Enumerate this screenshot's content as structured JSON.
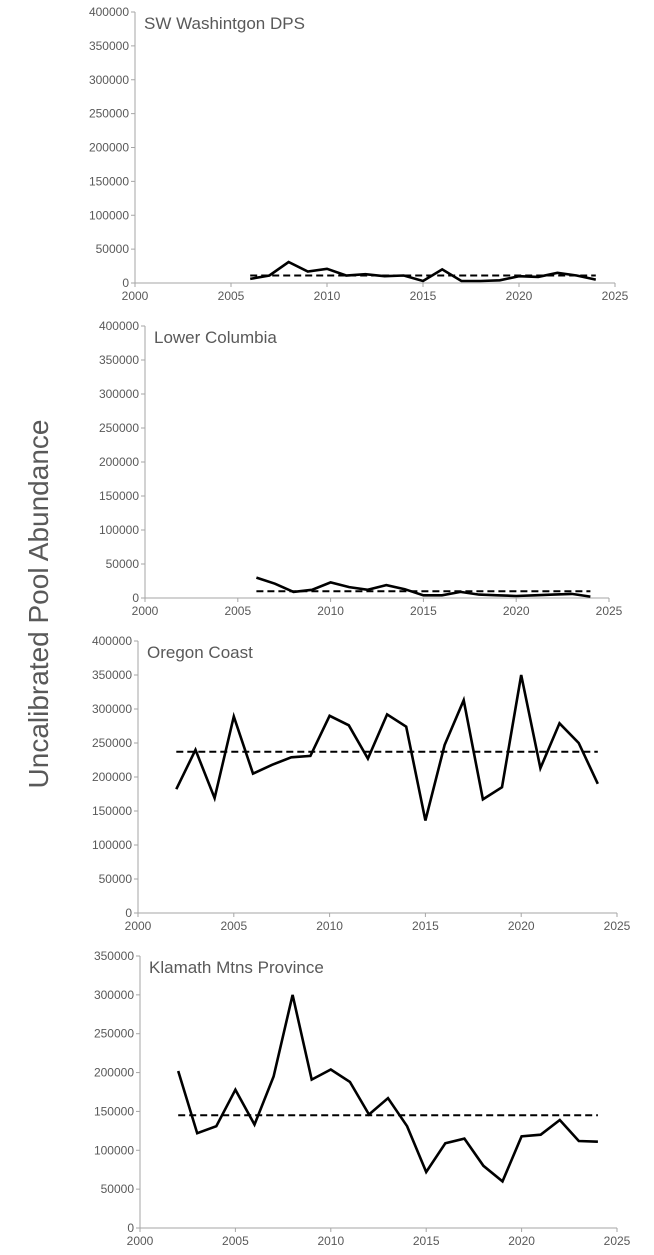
{
  "ylabel": "Uncalibrated Pool Abundance",
  "chart_data": [
    {
      "type": "line",
      "title": "SW Washintgon DPS",
      "xlabel": "",
      "ylabel": "Uncalibrated Pool Abundance",
      "xlim": [
        2000,
        2025
      ],
      "ylim": [
        0,
        400000
      ],
      "xticks": [
        2000,
        2005,
        2010,
        2015,
        2020,
        2025
      ],
      "yticks": [
        0,
        50000,
        100000,
        150000,
        200000,
        250000,
        300000,
        350000,
        400000
      ],
      "grid": false,
      "x": [
        2006,
        2007,
        2008,
        2009,
        2010,
        2011,
        2012,
        2013,
        2014,
        2015,
        2016,
        2017,
        2018,
        2019,
        2020,
        2021,
        2022,
        2023,
        2024
      ],
      "series": [
        {
          "values": [
            6000,
            11000,
            31000,
            17000,
            21000,
            11000,
            13000,
            10000,
            11000,
            3000,
            20000,
            3000,
            3000,
            4000,
            10000,
            9000,
            15000,
            11000,
            5000
          ],
          "color": "#000000",
          "style": "solid"
        },
        {
          "values": [
            11000,
            11000,
            11000,
            11000,
            11000,
            11000,
            11000,
            11000,
            11000,
            11000,
            11000,
            11000,
            11000,
            11000,
            11000,
            11000,
            11000,
            11000,
            11000
          ],
          "color": "#000000",
          "style": "dashed"
        }
      ]
    },
    {
      "type": "line",
      "title": "Lower Columbia",
      "xlabel": "",
      "ylabel": "Uncalibrated Pool Abundance",
      "xlim": [
        2000,
        2025
      ],
      "ylim": [
        0,
        400000
      ],
      "xticks": [
        2000,
        2005,
        2010,
        2015,
        2020,
        2025
      ],
      "yticks": [
        0,
        50000,
        100000,
        150000,
        200000,
        250000,
        300000,
        350000,
        400000
      ],
      "grid": false,
      "x": [
        2006,
        2007,
        2008,
        2009,
        2010,
        2011,
        2012,
        2013,
        2014,
        2015,
        2016,
        2017,
        2018,
        2019,
        2020,
        2021,
        2022,
        2023,
        2024
      ],
      "series": [
        {
          "values": [
            30000,
            21000,
            9000,
            12000,
            23000,
            16000,
            12000,
            19000,
            13000,
            4000,
            4000,
            9000,
            5000,
            4000,
            3000,
            4000,
            5000,
            6000,
            2000
          ],
          "color": "#000000",
          "style": "solid"
        },
        {
          "values": [
            10000,
            10000,
            10000,
            10000,
            10000,
            10000,
            10000,
            10000,
            10000,
            10000,
            10000,
            10000,
            10000,
            10000,
            10000,
            10000,
            10000,
            10000,
            10000
          ],
          "color": "#000000",
          "style": "dashed"
        }
      ]
    },
    {
      "type": "line",
      "title": "Oregon Coast",
      "xlabel": "",
      "ylabel": "Uncalibrated Pool Abundance",
      "xlim": [
        2000,
        2025
      ],
      "ylim": [
        0,
        400000
      ],
      "xticks": [
        2000,
        2005,
        2010,
        2015,
        2020,
        2025
      ],
      "yticks": [
        0,
        50000,
        100000,
        150000,
        200000,
        250000,
        300000,
        350000,
        400000
      ],
      "grid": false,
      "x": [
        2002,
        2003,
        2004,
        2005,
        2006,
        2007,
        2008,
        2009,
        2010,
        2011,
        2012,
        2013,
        2014,
        2015,
        2016,
        2017,
        2018,
        2019,
        2020,
        2021,
        2022,
        2023,
        2024
      ],
      "series": [
        {
          "values": [
            182000,
            240000,
            169000,
            289000,
            205000,
            218000,
            229000,
            231000,
            290000,
            276000,
            227000,
            292000,
            274000,
            136000,
            247000,
            313000,
            167000,
            185000,
            350000,
            213000,
            279000,
            250000,
            190000
          ],
          "color": "#000000",
          "style": "solid"
        },
        {
          "values": [
            237000,
            237000,
            237000,
            237000,
            237000,
            237000,
            237000,
            237000,
            237000,
            237000,
            237000,
            237000,
            237000,
            237000,
            237000,
            237000,
            237000,
            237000,
            237000,
            237000,
            237000,
            237000,
            237000
          ],
          "color": "#000000",
          "style": "dashed"
        }
      ]
    },
    {
      "type": "line",
      "title": "Klamath Mtns Province",
      "xlabel": "",
      "ylabel": "Uncalibrated Pool Abundance",
      "xlim": [
        2000,
        2025
      ],
      "ylim": [
        0,
        350000
      ],
      "xticks": [
        2000,
        2005,
        2010,
        2015,
        2020,
        2025
      ],
      "yticks": [
        0,
        50000,
        100000,
        150000,
        200000,
        250000,
        300000,
        350000
      ],
      "grid": false,
      "x": [
        2002,
        2003,
        2004,
        2005,
        2006,
        2007,
        2008,
        2009,
        2010,
        2011,
        2012,
        2013,
        2014,
        2015,
        2016,
        2017,
        2018,
        2019,
        2020,
        2021,
        2022,
        2023,
        2024
      ],
      "series": [
        {
          "values": [
            202000,
            122000,
            131000,
            178000,
            133000,
            195000,
            300000,
            191000,
            204000,
            188000,
            146000,
            167000,
            131000,
            72000,
            109000,
            115000,
            80000,
            60000,
            118000,
            120000,
            139000,
            112000,
            111000
          ],
          "color": "#000000",
          "style": "solid"
        },
        {
          "values": [
            145000,
            145000,
            145000,
            145000,
            145000,
            145000,
            145000,
            145000,
            145000,
            145000,
            145000,
            145000,
            145000,
            145000,
            145000,
            145000,
            145000,
            145000,
            145000,
            145000,
            145000,
            145000,
            145000
          ],
          "color": "#000000",
          "style": "dashed"
        }
      ]
    }
  ]
}
